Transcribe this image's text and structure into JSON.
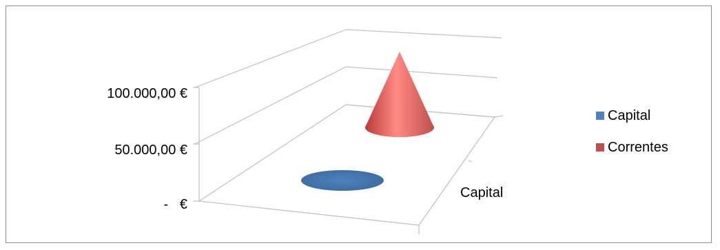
{
  "chart_data": {
    "type": "bar",
    "subtype": "3d-cone",
    "categories": [
      "Capital"
    ],
    "series": [
      {
        "name": "Capital",
        "values": [
          0
        ],
        "color": "#4f81bd"
      },
      {
        "name": "Correntes",
        "values": [
          100000
        ],
        "color": "#c0504d"
      }
    ],
    "y_ticks": [
      "-   €",
      "50.000,00 €",
      "100.000,00 €"
    ],
    "ylim": [
      0,
      150000
    ],
    "grid": true,
    "legend_position": "right"
  }
}
